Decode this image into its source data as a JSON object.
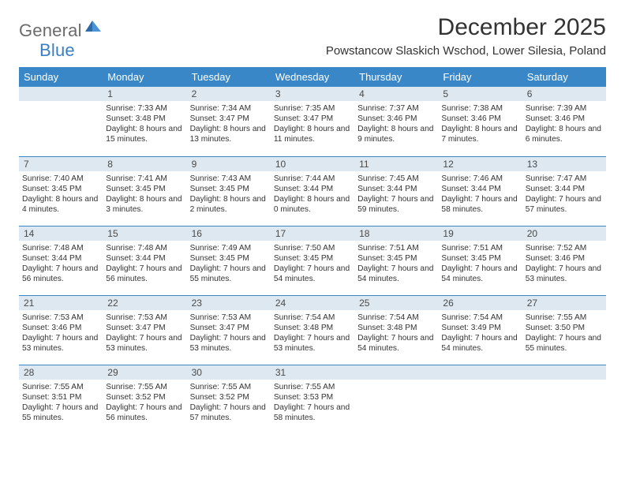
{
  "logo": {
    "general": "General",
    "blue": "Blue"
  },
  "title": "December 2025",
  "location": "Powstancow Slaskich Wschod, Lower Silesia, Poland",
  "colors": {
    "header_bg": "#3a87c7",
    "header_text": "#ffffff",
    "daynum_bg": "#dde8f0",
    "daynum_border": "#3a87c7",
    "body_text": "#333333",
    "logo_gray": "#6b6b6b",
    "logo_blue": "#3a7fc4",
    "page_bg": "#ffffff"
  },
  "weekdays": [
    "Sunday",
    "Monday",
    "Tuesday",
    "Wednesday",
    "Thursday",
    "Friday",
    "Saturday"
  ],
  "weeks": [
    [
      {
        "n": "",
        "sr": "",
        "ss": "",
        "dl": ""
      },
      {
        "n": "1",
        "sr": "Sunrise: 7:33 AM",
        "ss": "Sunset: 3:48 PM",
        "dl": "Daylight: 8 hours and 15 minutes."
      },
      {
        "n": "2",
        "sr": "Sunrise: 7:34 AM",
        "ss": "Sunset: 3:47 PM",
        "dl": "Daylight: 8 hours and 13 minutes."
      },
      {
        "n": "3",
        "sr": "Sunrise: 7:35 AM",
        "ss": "Sunset: 3:47 PM",
        "dl": "Daylight: 8 hours and 11 minutes."
      },
      {
        "n": "4",
        "sr": "Sunrise: 7:37 AM",
        "ss": "Sunset: 3:46 PM",
        "dl": "Daylight: 8 hours and 9 minutes."
      },
      {
        "n": "5",
        "sr": "Sunrise: 7:38 AM",
        "ss": "Sunset: 3:46 PM",
        "dl": "Daylight: 8 hours and 7 minutes."
      },
      {
        "n": "6",
        "sr": "Sunrise: 7:39 AM",
        "ss": "Sunset: 3:46 PM",
        "dl": "Daylight: 8 hours and 6 minutes."
      }
    ],
    [
      {
        "n": "7",
        "sr": "Sunrise: 7:40 AM",
        "ss": "Sunset: 3:45 PM",
        "dl": "Daylight: 8 hours and 4 minutes."
      },
      {
        "n": "8",
        "sr": "Sunrise: 7:41 AM",
        "ss": "Sunset: 3:45 PM",
        "dl": "Daylight: 8 hours and 3 minutes."
      },
      {
        "n": "9",
        "sr": "Sunrise: 7:43 AM",
        "ss": "Sunset: 3:45 PM",
        "dl": "Daylight: 8 hours and 2 minutes."
      },
      {
        "n": "10",
        "sr": "Sunrise: 7:44 AM",
        "ss": "Sunset: 3:44 PM",
        "dl": "Daylight: 8 hours and 0 minutes."
      },
      {
        "n": "11",
        "sr": "Sunrise: 7:45 AM",
        "ss": "Sunset: 3:44 PM",
        "dl": "Daylight: 7 hours and 59 minutes."
      },
      {
        "n": "12",
        "sr": "Sunrise: 7:46 AM",
        "ss": "Sunset: 3:44 PM",
        "dl": "Daylight: 7 hours and 58 minutes."
      },
      {
        "n": "13",
        "sr": "Sunrise: 7:47 AM",
        "ss": "Sunset: 3:44 PM",
        "dl": "Daylight: 7 hours and 57 minutes."
      }
    ],
    [
      {
        "n": "14",
        "sr": "Sunrise: 7:48 AM",
        "ss": "Sunset: 3:44 PM",
        "dl": "Daylight: 7 hours and 56 minutes."
      },
      {
        "n": "15",
        "sr": "Sunrise: 7:48 AM",
        "ss": "Sunset: 3:44 PM",
        "dl": "Daylight: 7 hours and 56 minutes."
      },
      {
        "n": "16",
        "sr": "Sunrise: 7:49 AM",
        "ss": "Sunset: 3:45 PM",
        "dl": "Daylight: 7 hours and 55 minutes."
      },
      {
        "n": "17",
        "sr": "Sunrise: 7:50 AM",
        "ss": "Sunset: 3:45 PM",
        "dl": "Daylight: 7 hours and 54 minutes."
      },
      {
        "n": "18",
        "sr": "Sunrise: 7:51 AM",
        "ss": "Sunset: 3:45 PM",
        "dl": "Daylight: 7 hours and 54 minutes."
      },
      {
        "n": "19",
        "sr": "Sunrise: 7:51 AM",
        "ss": "Sunset: 3:45 PM",
        "dl": "Daylight: 7 hours and 54 minutes."
      },
      {
        "n": "20",
        "sr": "Sunrise: 7:52 AM",
        "ss": "Sunset: 3:46 PM",
        "dl": "Daylight: 7 hours and 53 minutes."
      }
    ],
    [
      {
        "n": "21",
        "sr": "Sunrise: 7:53 AM",
        "ss": "Sunset: 3:46 PM",
        "dl": "Daylight: 7 hours and 53 minutes."
      },
      {
        "n": "22",
        "sr": "Sunrise: 7:53 AM",
        "ss": "Sunset: 3:47 PM",
        "dl": "Daylight: 7 hours and 53 minutes."
      },
      {
        "n": "23",
        "sr": "Sunrise: 7:53 AM",
        "ss": "Sunset: 3:47 PM",
        "dl": "Daylight: 7 hours and 53 minutes."
      },
      {
        "n": "24",
        "sr": "Sunrise: 7:54 AM",
        "ss": "Sunset: 3:48 PM",
        "dl": "Daylight: 7 hours and 53 minutes."
      },
      {
        "n": "25",
        "sr": "Sunrise: 7:54 AM",
        "ss": "Sunset: 3:48 PM",
        "dl": "Daylight: 7 hours and 54 minutes."
      },
      {
        "n": "26",
        "sr": "Sunrise: 7:54 AM",
        "ss": "Sunset: 3:49 PM",
        "dl": "Daylight: 7 hours and 54 minutes."
      },
      {
        "n": "27",
        "sr": "Sunrise: 7:55 AM",
        "ss": "Sunset: 3:50 PM",
        "dl": "Daylight: 7 hours and 55 minutes."
      }
    ],
    [
      {
        "n": "28",
        "sr": "Sunrise: 7:55 AM",
        "ss": "Sunset: 3:51 PM",
        "dl": "Daylight: 7 hours and 55 minutes."
      },
      {
        "n": "29",
        "sr": "Sunrise: 7:55 AM",
        "ss": "Sunset: 3:52 PM",
        "dl": "Daylight: 7 hours and 56 minutes."
      },
      {
        "n": "30",
        "sr": "Sunrise: 7:55 AM",
        "ss": "Sunset: 3:52 PM",
        "dl": "Daylight: 7 hours and 57 minutes."
      },
      {
        "n": "31",
        "sr": "Sunrise: 7:55 AM",
        "ss": "Sunset: 3:53 PM",
        "dl": "Daylight: 7 hours and 58 minutes."
      },
      {
        "n": "",
        "sr": "",
        "ss": "",
        "dl": ""
      },
      {
        "n": "",
        "sr": "",
        "ss": "",
        "dl": ""
      },
      {
        "n": "",
        "sr": "",
        "ss": "",
        "dl": ""
      }
    ]
  ]
}
